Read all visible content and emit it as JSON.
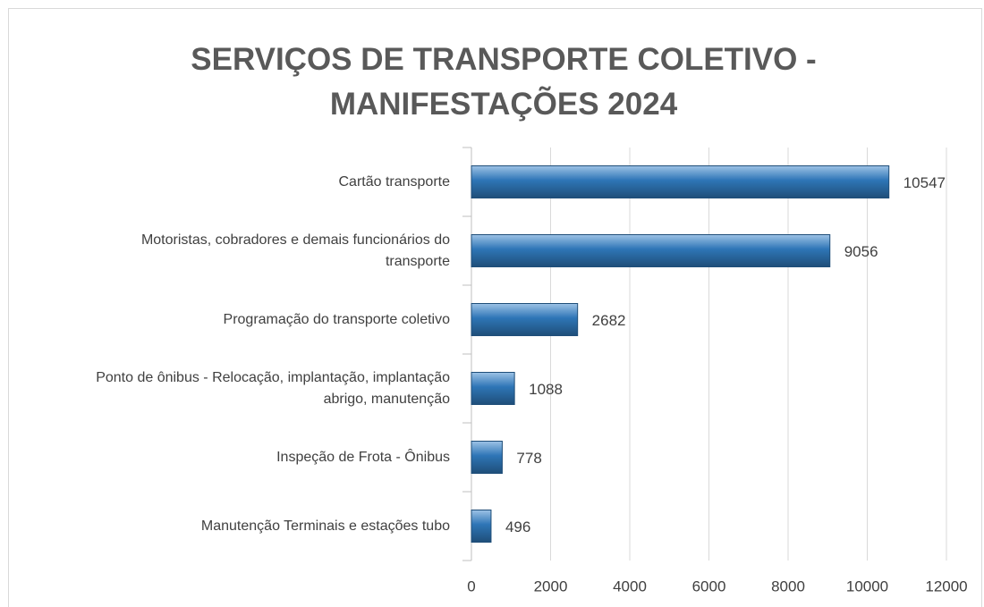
{
  "chart_data": {
    "type": "bar",
    "orientation": "horizontal",
    "title": "SERVIÇOS DE TRANSPORTE COLETIVO - MANIFESTAÇÕES 2024",
    "categories": [
      "Cartão transporte",
      "Motoristas, cobradores e demais funcionários do transporte",
      "Programação do transporte coletivo",
      "Ponto de ônibus - Relocação, implantação, implantação abrigo, manutenção",
      "Inspeção de Frota - Ônibus",
      "Manutenção Terminais e estações tubo"
    ],
    "values": [
      10547,
      9056,
      2682,
      1088,
      778,
      496
    ],
    "color": "#2e75b6",
    "xlim": [
      0,
      12000
    ],
    "xticks": [
      0,
      2000,
      4000,
      6000,
      8000,
      10000,
      12000
    ],
    "grid": true
  }
}
